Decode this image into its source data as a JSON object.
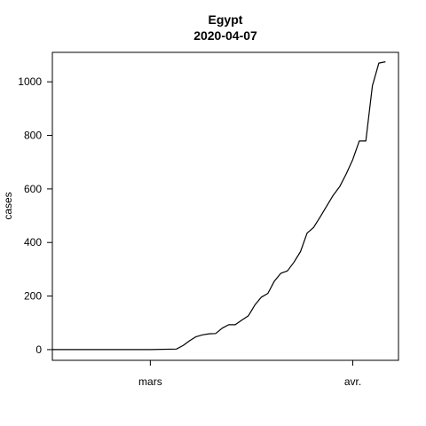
{
  "chart_data": {
    "type": "line",
    "title": "Egypt",
    "subtitle": "2020-04-07",
    "xlabel": "",
    "ylabel": "cases",
    "x_ticks": [
      {
        "date": "2020-03-01",
        "label": "mars"
      },
      {
        "date": "2020-04-01",
        "label": "avr."
      }
    ],
    "y_ticks": [
      0,
      200,
      400,
      600,
      800,
      1000
    ],
    "xlim": [
      "2020-02-15",
      "2020-04-08"
    ],
    "ylim": [
      -40,
      1110
    ],
    "grid": false,
    "legend": "none",
    "line_color": "#000000",
    "series": [
      {
        "points": [
          {
            "x": "2020-02-15",
            "y": 0
          },
          {
            "x": "2020-02-20",
            "y": 0
          },
          {
            "x": "2020-02-25",
            "y": 0
          },
          {
            "x": "2020-03-01",
            "y": 0
          },
          {
            "x": "2020-03-05",
            "y": 2
          },
          {
            "x": "2020-03-06",
            "y": 15
          },
          {
            "x": "2020-03-07",
            "y": 33
          },
          {
            "x": "2020-03-08",
            "y": 48
          },
          {
            "x": "2020-03-09",
            "y": 55
          },
          {
            "x": "2020-03-10",
            "y": 59
          },
          {
            "x": "2020-03-11",
            "y": 60
          },
          {
            "x": "2020-03-12",
            "y": 80
          },
          {
            "x": "2020-03-13",
            "y": 93
          },
          {
            "x": "2020-03-14",
            "y": 93
          },
          {
            "x": "2020-03-15",
            "y": 110
          },
          {
            "x": "2020-03-16",
            "y": 126
          },
          {
            "x": "2020-03-17",
            "y": 166
          },
          {
            "x": "2020-03-18",
            "y": 196
          },
          {
            "x": "2020-03-19",
            "y": 210
          },
          {
            "x": "2020-03-20",
            "y": 256
          },
          {
            "x": "2020-03-21",
            "y": 285
          },
          {
            "x": "2020-03-22",
            "y": 294
          },
          {
            "x": "2020-03-23",
            "y": 327
          },
          {
            "x": "2020-03-24",
            "y": 366
          },
          {
            "x": "2020-03-25",
            "y": 435
          },
          {
            "x": "2020-03-26",
            "y": 456
          },
          {
            "x": "2020-03-27",
            "y": 495
          },
          {
            "x": "2020-03-28",
            "y": 536
          },
          {
            "x": "2020-03-29",
            "y": 576
          },
          {
            "x": "2020-03-30",
            "y": 609
          },
          {
            "x": "2020-03-31",
            "y": 656
          },
          {
            "x": "2020-04-01",
            "y": 710
          },
          {
            "x": "2020-04-02",
            "y": 779
          },
          {
            "x": "2020-04-03",
            "y": 779
          },
          {
            "x": "2020-04-04",
            "y": 985
          },
          {
            "x": "2020-04-05",
            "y": 1070
          },
          {
            "x": "2020-04-06",
            "y": 1075
          }
        ]
      }
    ]
  }
}
